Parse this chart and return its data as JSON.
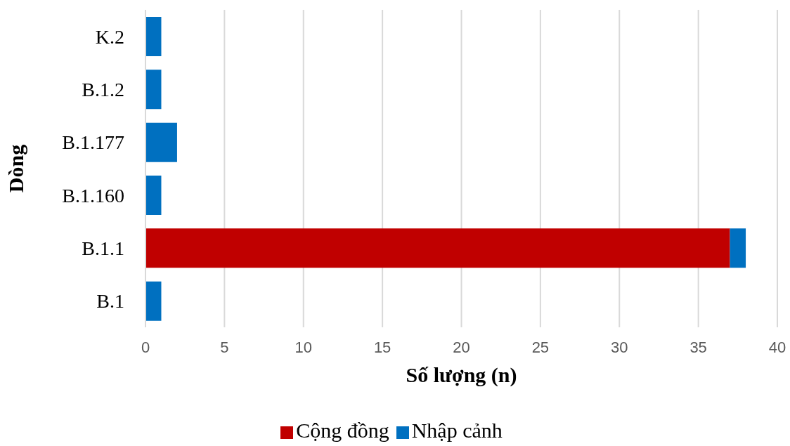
{
  "chart_data": {
    "type": "bar",
    "orientation": "horizontal",
    "stacked": true,
    "xlabel": "Số lượng (n)",
    "ylabel": "Dòng",
    "categories": [
      "K.2",
      "B.1.2",
      "B.1.177",
      "B.1.160",
      "B.1.1",
      "B.1"
    ],
    "series": [
      {
        "name": "Cộng đồng",
        "color": "#c00000",
        "values": [
          0,
          0,
          0,
          0,
          37,
          0
        ]
      },
      {
        "name": "Nhập cảnh",
        "color": "#0070c0",
        "values": [
          1,
          1,
          2,
          1,
          1,
          1
        ]
      }
    ],
    "xlim": [
      0,
      40
    ],
    "xticks": [
      0,
      5,
      10,
      15,
      20,
      25,
      30,
      35,
      40
    ],
    "grid": "x",
    "legend": "bottom"
  }
}
